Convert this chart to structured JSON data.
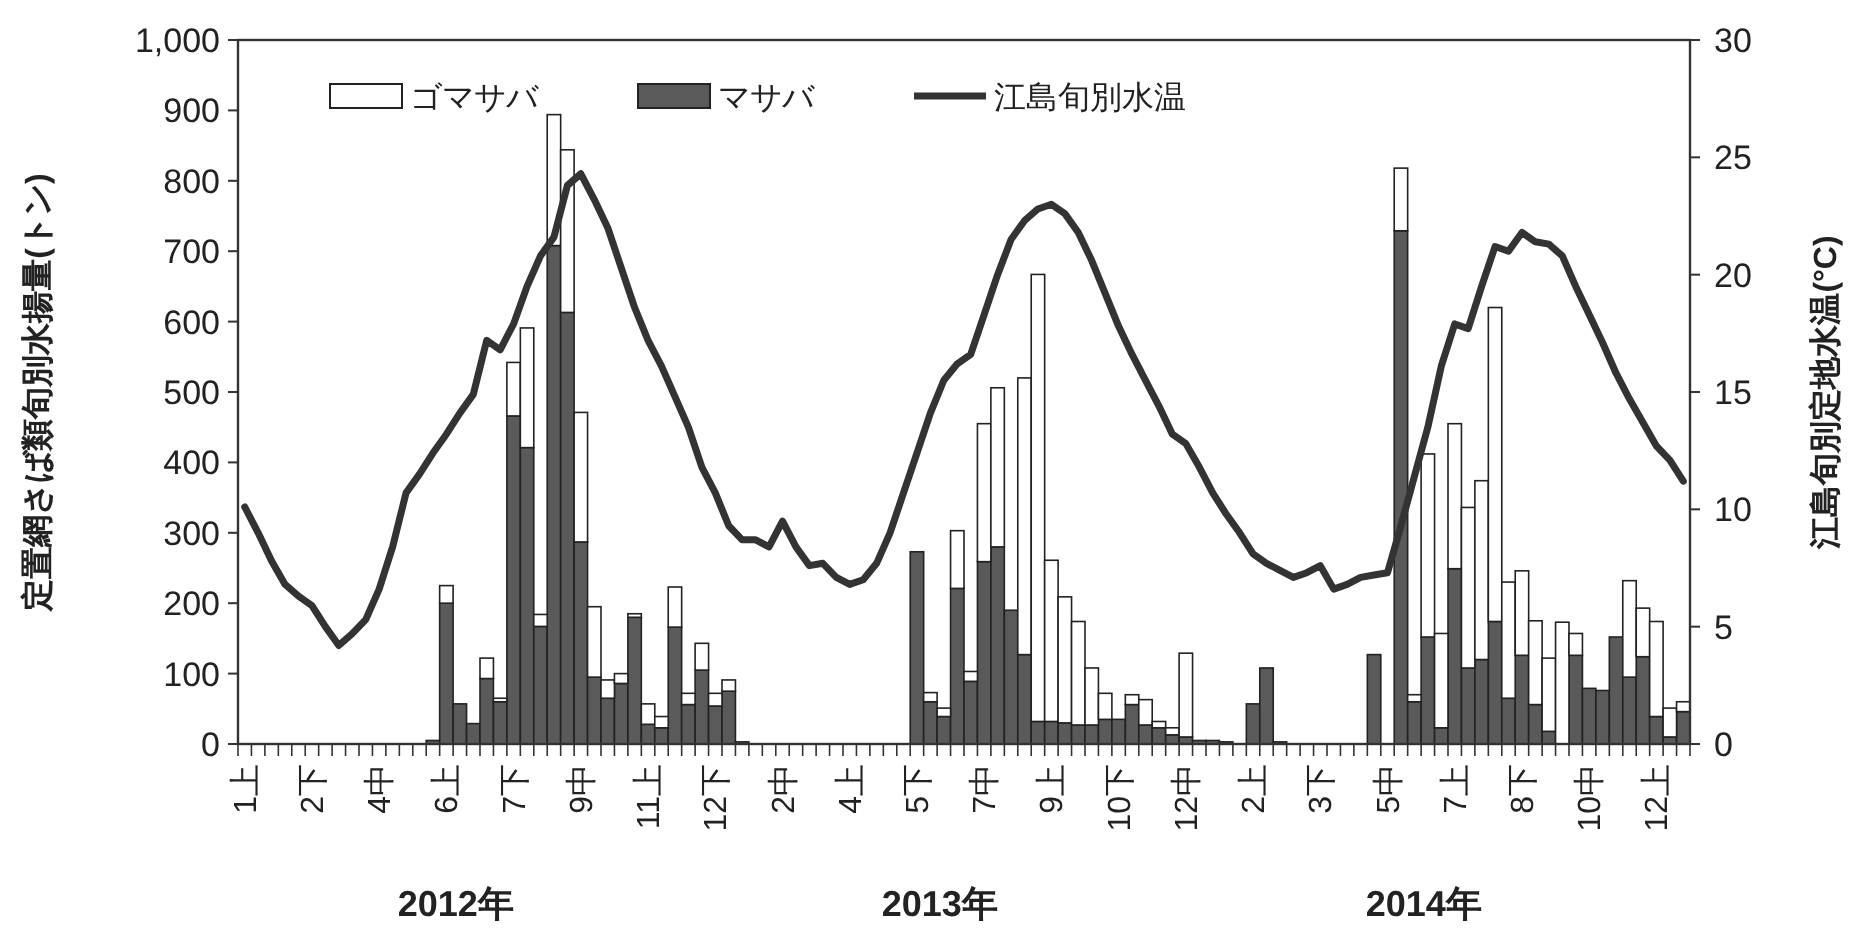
{
  "chart_data": {
    "type": "bar",
    "stacked": true,
    "legend": "top",
    "ylabel": "定置網さば類旬別水揚量(トン)",
    "y2label": "江島旬別定地水温(°C)",
    "ylim": [
      0,
      1000
    ],
    "yticks": [
      0,
      100,
      200,
      300,
      400,
      500,
      600,
      700,
      800,
      900,
      {
        "value": 1000,
        "label": "1,000"
      }
    ],
    "y2lim": [
      0,
      30
    ],
    "y2ticks": [
      0,
      5,
      10,
      15,
      20,
      25,
      30
    ],
    "annotations": [
      "2012年",
      "2013年",
      "2014年"
    ],
    "categories": [
      "1上",
      null,
      null,
      null,
      null,
      "2下",
      null,
      null,
      null,
      null,
      "4中",
      null,
      null,
      null,
      null,
      "6上",
      null,
      null,
      null,
      null,
      "7下",
      null,
      null,
      null,
      null,
      "9中",
      null,
      null,
      null,
      null,
      "11上",
      null,
      null,
      null,
      null,
      "12下",
      null,
      null,
      null,
      null,
      "2中",
      null,
      null,
      null,
      null,
      "4上",
      null,
      null,
      null,
      null,
      "5下",
      null,
      null,
      null,
      null,
      "7中",
      null,
      null,
      null,
      null,
      "9上",
      null,
      null,
      null,
      null,
      "10下",
      null,
      null,
      null,
      null,
      "12中",
      null,
      null,
      null,
      null,
      "2上",
      null,
      null,
      null,
      null,
      "3下",
      null,
      null,
      null,
      null,
      "5中",
      null,
      null,
      null,
      null,
      "7上",
      null,
      null,
      null,
      null,
      "8下",
      null,
      null,
      null,
      null,
      "10中",
      null,
      null,
      null,
      null,
      "12上",
      null,
      null
    ],
    "series": [
      {
        "name": "マサバ",
        "color": "#5a5a5a",
        "values": [
          0,
          0,
          0,
          0,
          0,
          0,
          0,
          0,
          0,
          0,
          0,
          0,
          0,
          0,
          5,
          200,
          57,
          29,
          93,
          60,
          466,
          421,
          167,
          708,
          613,
          287,
          95,
          65,
          86,
          180,
          28,
          23,
          166,
          56,
          105,
          54,
          75,
          3,
          0,
          0,
          0,
          0,
          0,
          0,
          0,
          0,
          0,
          0,
          0,
          0,
          273,
          60,
          39,
          221,
          89,
          259,
          280,
          190,
          127,
          32,
          32,
          30,
          27,
          27,
          35,
          35,
          56,
          27,
          23,
          13,
          10,
          5,
          5,
          3,
          0,
          57,
          108,
          3,
          0,
          0,
          0,
          0,
          0,
          0,
          127,
          0,
          729,
          60,
          152,
          23,
          249,
          108,
          120,
          174,
          65,
          126,
          56,
          18,
          null,
          126,
          79,
          76,
          152,
          95,
          124,
          39,
          10,
          46
        ]
      },
      {
        "name": "ゴマサバ",
        "color": "#ffffff",
        "values": [
          0,
          0,
          0,
          0,
          0,
          0,
          0,
          0,
          0,
          0,
          0,
          0,
          0,
          0,
          0,
          25,
          0,
          0,
          29,
          5,
          76,
          170,
          17,
          186,
          231,
          184,
          100,
          26,
          14,
          5,
          29,
          16,
          57,
          16,
          38,
          18,
          16,
          0,
          0,
          0,
          0,
          0,
          0,
          0,
          0,
          0,
          0,
          0,
          0,
          0,
          0,
          13,
          12,
          82,
          14,
          196,
          226,
          0,
          393,
          635,
          229,
          179,
          147,
          81,
          37,
          0,
          14,
          36,
          9,
          10,
          119,
          0,
          0,
          0,
          0,
          0,
          0,
          0,
          0,
          0,
          0,
          0,
          0,
          0,
          0,
          0,
          89,
          10,
          260,
          134,
          206,
          228,
          254,
          446,
          165,
          120,
          119,
          104,
          173,
          31,
          0,
          0,
          0,
          137,
          69,
          135,
          41,
          14
        ]
      },
      {
        "name": "江島旬別水温",
        "type": "line",
        "axis": "y2",
        "color": "#333333",
        "values": [
          10.1,
          9.0,
          7.8,
          6.8,
          6.3,
          5.9,
          5.0,
          4.2,
          4.7,
          5.3,
          6.6,
          8.4,
          10.7,
          11.5,
          12.4,
          13.2,
          14.1,
          14.9,
          17.2,
          16.8,
          17.9,
          19.5,
          20.8,
          21.6,
          23.8,
          24.3,
          23.2,
          22.0,
          20.3,
          18.6,
          17.2,
          16.1,
          14.8,
          13.5,
          11.8,
          10.7,
          9.3,
          8.7,
          8.7,
          8.4,
          9.5,
          8.4,
          7.6,
          7.7,
          7.1,
          6.8,
          7.0,
          7.7,
          9.0,
          10.7,
          12.4,
          14.1,
          15.5,
          16.2,
          16.6,
          18.3,
          20.0,
          21.5,
          22.3,
          22.8,
          23.0,
          22.6,
          21.8,
          20.6,
          19.2,
          17.8,
          16.6,
          15.5,
          14.4,
          13.2,
          12.8,
          11.8,
          10.7,
          9.8,
          9.0,
          8.1,
          7.7,
          7.4,
          7.1,
          7.3,
          7.6,
          6.6,
          6.8,
          7.1,
          7.2,
          7.3,
          9.3,
          11.4,
          13.5,
          16.1,
          17.9,
          17.7,
          19.5,
          21.2,
          21.0,
          21.8,
          21.4,
          21.3,
          20.8,
          19.5,
          18.3,
          17.1,
          15.8,
          14.7,
          13.7,
          12.7,
          12.1,
          11.2
        ]
      }
    ]
  }
}
